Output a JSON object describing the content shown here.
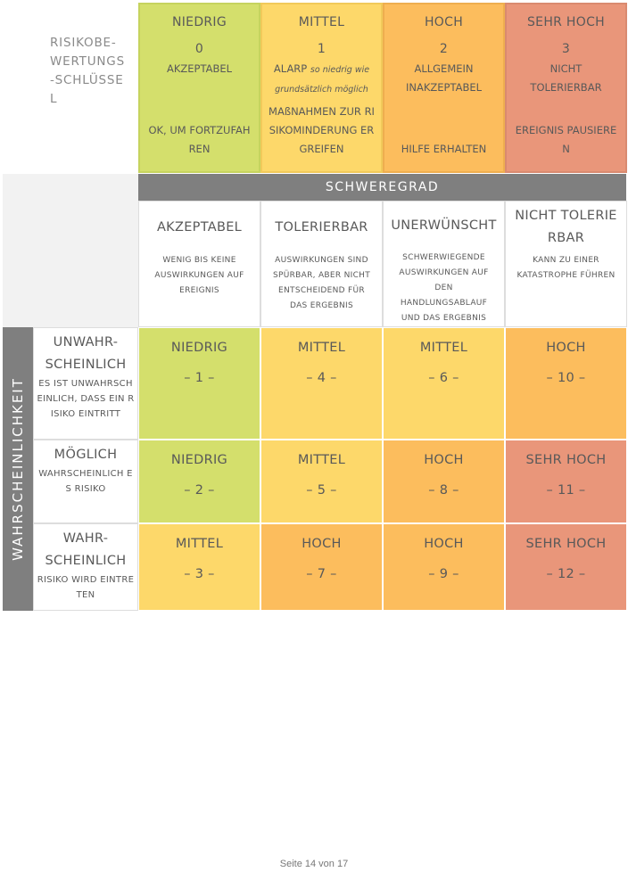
{
  "key": {
    "label": "RISIKOBE-WERTUNGS-SCHLÜSSEL",
    "levels": [
      {
        "name": "NIEDRIG",
        "number": 0,
        "description": "AKZEPTABEL",
        "action": "OK, UM FORTZUFAHREN"
      },
      {
        "name": "MITTEL",
        "number": 1,
        "description": "ALARP",
        "note": "so niedrig wie grundsätzlich möglich",
        "action": "MAßNAHMEN ZUR RISIKOMINDERUNG ERGREIFEN"
      },
      {
        "name": "HOCH",
        "number": 2,
        "description": "ALLGEMEIN INAKZEPTABEL",
        "action": "HILFE ERHALTEN"
      },
      {
        "name": "SEHR HOCH",
        "number": 3,
        "description": "NICHT TOLERIERBAR",
        "action": "EREIGNIS PAUSIEREN"
      }
    ]
  },
  "severity": {
    "title": "SCHWEREGRAD",
    "columns": [
      {
        "name": "AKZEPTABEL",
        "description": "WENIG BIS KEINE AUSWIRKUNGEN AUF EREIGNIS"
      },
      {
        "name": "TOLERIERBAR",
        "description": "AUSWIRKUNGEN SIND SPÜRBAR, ABER NICHT ENTSCHEIDEND FÜR DAS ERGEBNIS"
      },
      {
        "name": "UNERWÜNSCHT",
        "description": "SCHWERWIEGENDE AUSWIRKUNGEN AUF DEN HANDLUNGSABLAUF UND DAS ERGEBNIS"
      },
      {
        "name": "NICHT TOLERIERBAR",
        "description": "KANN ZU EINER KATASTROPHE FÜHREN"
      }
    ]
  },
  "likelihood": {
    "title": "WAHRSCHEINLICHKEIT",
    "rows": [
      {
        "name": "UNWAHR-SCHEINLICH",
        "description": "ES IST UNWAHRSCHEINLICH, DASS EIN RISIKO EINTRITT",
        "cells": [
          {
            "level": "NIEDRIG",
            "score": "– 1 –"
          },
          {
            "level": "MITTEL",
            "score": "– 4 –"
          },
          {
            "level": "MITTEL",
            "score": "– 6 –"
          },
          {
            "level": "HOCH",
            "score": "– 10 –"
          }
        ]
      },
      {
        "name": "MÖGLICH",
        "description": "WAHRSCHEINLICH ES RISIKO",
        "cells": [
          {
            "level": "NIEDRIG",
            "score": "– 2 –"
          },
          {
            "level": "MITTEL",
            "score": "– 5 –"
          },
          {
            "level": "HOCH",
            "score": "– 8 –"
          },
          {
            "level": "SEHR HOCH",
            "score": "– 11 –"
          }
        ]
      },
      {
        "name": "WAHR-SCHEINLICH",
        "description": "RISIKO WIRD EINTRETEN",
        "cells": [
          {
            "level": "MITTEL",
            "score": "– 3 –"
          },
          {
            "level": "HOCH",
            "score": "– 7 –"
          },
          {
            "level": "HOCH",
            "score": "– 9 –"
          },
          {
            "level": "SEHR HOCH",
            "score": "– 12 –"
          }
        ]
      }
    ]
  },
  "footer": "Seite 14 von 17"
}
